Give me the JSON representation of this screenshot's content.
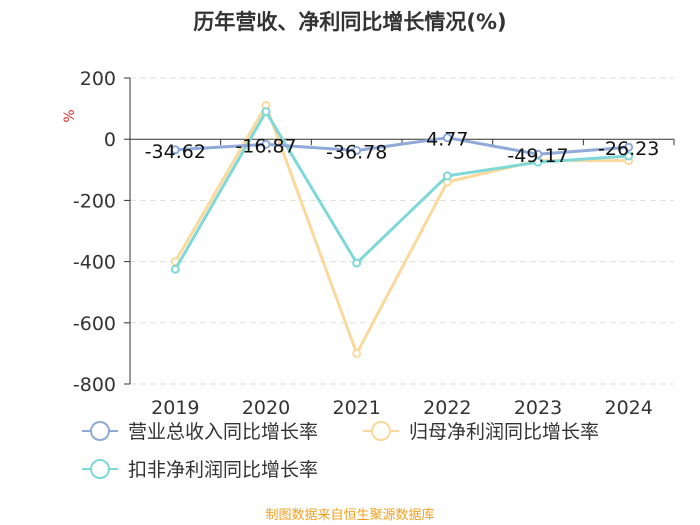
{
  "chart_data": {
    "type": "line",
    "title": "历年营收、净利同比增长情况(%)",
    "ylabel": "%",
    "xlabel": "",
    "ylim": [
      -800,
      200
    ],
    "yticks": [
      200,
      0,
      -200,
      -400,
      -600,
      -800
    ],
    "categories": [
      "2019",
      "2020",
      "2021",
      "2022",
      "2023",
      "2024"
    ],
    "series": [
      {
        "name": "营业总收入同比增长率",
        "color": "#8fa9d8",
        "values": [
          -34.62,
          -16.87,
          -36.78,
          4.77,
          -49.17,
          -26.23
        ],
        "labels": [
          "-34.62",
          "-16.87",
          "-36.78",
          "4.77",
          "-49.17",
          "-26.23"
        ]
      },
      {
        "name": "归母净利润同比增长率",
        "color": "#fbd99c",
        "values": [
          -400,
          110,
          -700,
          -140,
          -70,
          -70
        ]
      },
      {
        "name": "扣非净利润同比增长率",
        "color": "#7fd8d8",
        "values": [
          -425,
          90,
          -405,
          -120,
          -75,
          -55
        ]
      }
    ],
    "grid": true,
    "legend": "bottom"
  },
  "colors": {
    "axis": "#333333",
    "grid": "#dddddd",
    "unit": "#e03030",
    "source": "#f0a020"
  },
  "footer": {
    "source": "制图数据来自恒生聚源数据库"
  }
}
